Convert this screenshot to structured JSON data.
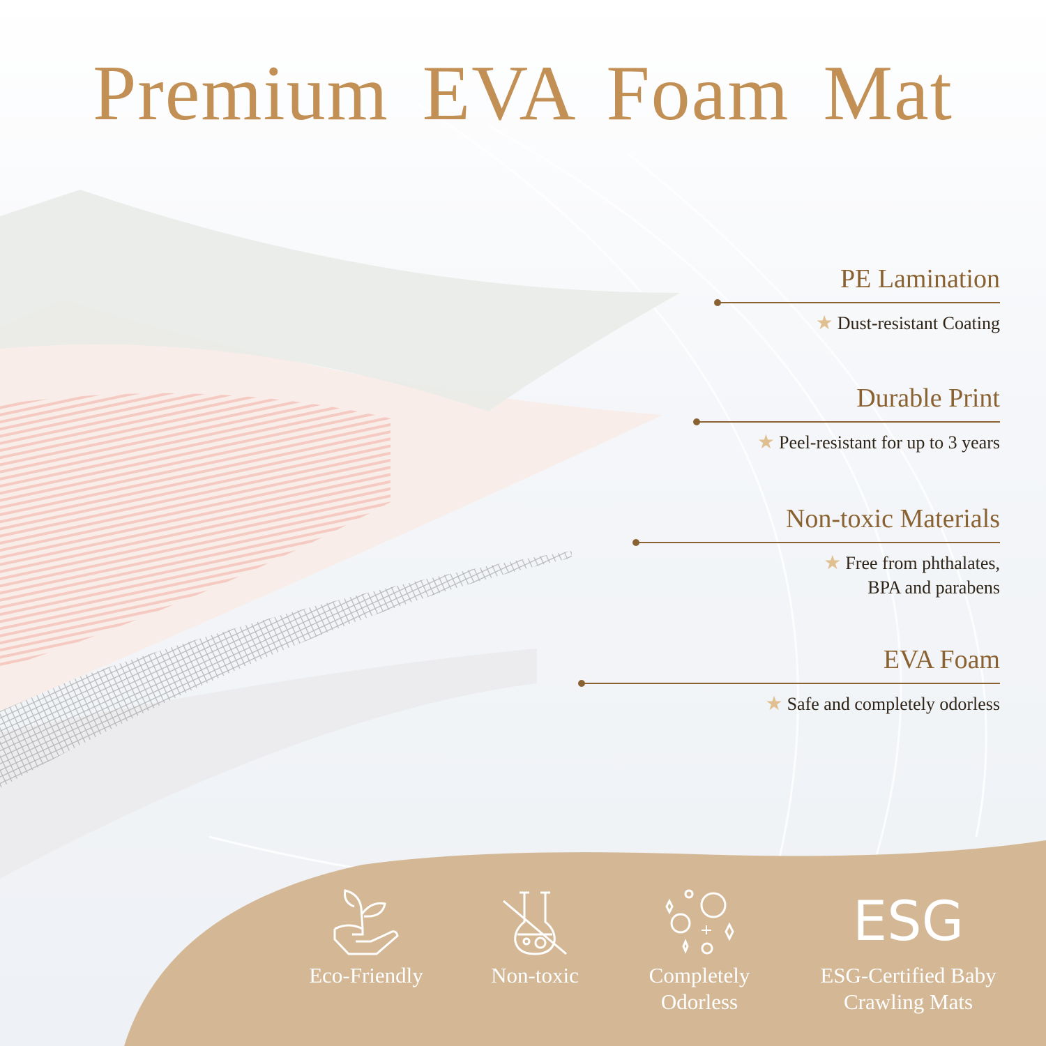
{
  "title": "Premium  EVA  Foam Mat",
  "colors": {
    "title": "#c28f55",
    "label": "#8a6232",
    "band": "#d4b896",
    "star": "#e0bf90"
  },
  "features": [
    {
      "heading": "PE Lamination",
      "desc": [
        "Dust-resistant Coating"
      ]
    },
    {
      "heading": "Durable Print",
      "desc": [
        "Peel-resistant for up to 3 years"
      ]
    },
    {
      "heading": "Non-toxic Materials",
      "desc": [
        "Free from phthalates,",
        "BPA and parabens"
      ]
    },
    {
      "heading": "EVA Foam",
      "desc": [
        "Safe and completely odorless"
      ]
    }
  ],
  "badges": [
    {
      "icon": "plant-in-hand-icon",
      "label": [
        "Eco-Friendly"
      ]
    },
    {
      "icon": "crossed-flask-icon",
      "label": [
        "Non-toxic"
      ]
    },
    {
      "icon": "bubbles-sparkle-icon",
      "label": [
        "Completely",
        "Odorless"
      ]
    },
    {
      "icon": "esg-icon",
      "icon_text": "ESG",
      "label": [
        "ESG-Certified Baby",
        "Crawling Mats"
      ]
    }
  ]
}
